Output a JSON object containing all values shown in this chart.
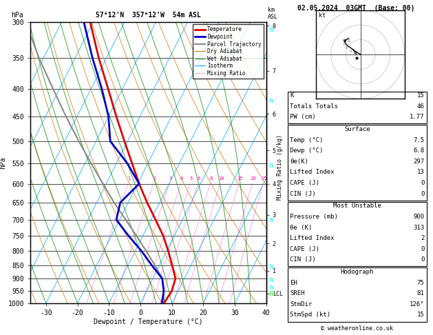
{
  "title_left": "57°12'N  357°12'W  54m ASL",
  "title_right": "02.05.2024  03GMT  (Base: 00)",
  "xlabel": "Dewpoint / Temperature (°C)",
  "ylabel_left": "hPa",
  "pressure_ticks": [
    300,
    350,
    400,
    450,
    500,
    550,
    600,
    650,
    700,
    750,
    800,
    850,
    900,
    950,
    1000
  ],
  "xlim": [
    -35,
    40
  ],
  "xticks": [
    -30,
    -20,
    -10,
    0,
    10,
    20,
    30,
    40
  ],
  "km_ticks_p": [
    305,
    370,
    445,
    520,
    600,
    685,
    775,
    870,
    960
  ],
  "km_ticks_lbl": [
    "8",
    "7",
    "6",
    "5",
    "4",
    "3",
    "2",
    "1",
    "LCL"
  ],
  "temp_profile": {
    "pressure": [
      1000,
      950,
      900,
      850,
      800,
      750,
      700,
      650,
      600,
      550,
      500,
      450,
      400,
      350,
      300
    ],
    "temp": [
      7.5,
      8.0,
      7.2,
      4.0,
      0.5,
      -3.5,
      -8.5,
      -14.0,
      -19.5,
      -25.0,
      -31.0,
      -37.5,
      -44.5,
      -52.5,
      -61.0
    ]
  },
  "dewp_profile": {
    "pressure": [
      1000,
      950,
      900,
      850,
      800,
      750,
      700,
      650,
      600,
      550,
      500,
      450,
      400,
      350,
      300
    ],
    "temp": [
      6.8,
      5.5,
      3.0,
      -2.5,
      -8.0,
      -14.5,
      -21.0,
      -22.5,
      -19.5,
      -26.5,
      -35.5,
      -40.0,
      -46.5,
      -54.5,
      -63.0
    ]
  },
  "parcel_profile": {
    "pressure": [
      1000,
      950,
      900,
      850,
      800,
      750,
      700,
      650,
      600,
      550,
      500,
      450,
      400,
      350,
      300
    ],
    "temp": [
      7.5,
      5.5,
      3.0,
      -1.5,
      -6.5,
      -12.0,
      -18.0,
      -24.5,
      -31.0,
      -38.0,
      -45.5,
      -53.5,
      -62.0,
      -71.5,
      -81.5
    ]
  },
  "bg_color": "#ffffff",
  "temp_color": "#dd0000",
  "dewp_color": "#0000cc",
  "parcel_color": "#888888",
  "dry_adiabat_color": "#cc7700",
  "wet_adiabat_color": "#008800",
  "isotherm_color": "#00aaff",
  "mixing_ratio_color": "#ff00aa",
  "legend_items": [
    "Temperature",
    "Dewpoint",
    "Parcel Trajectory",
    "Dry Adiabat",
    "Wet Adiabat",
    "Isotherm",
    "Mixing Ratio"
  ],
  "mixing_ratios": [
    1,
    2,
    3,
    4,
    5,
    6,
    8,
    10,
    15,
    20,
    25
  ],
  "dry_adiabat_thetas": [
    240,
    250,
    260,
    270,
    280,
    290,
    300,
    310,
    320,
    330,
    340,
    350,
    360,
    380,
    400,
    420
  ],
  "wet_adiabat_T0s": [
    -40,
    -30,
    -20,
    -15,
    -10,
    -5,
    0,
    5,
    10,
    15,
    20,
    25,
    30,
    35
  ],
  "iso_temps": [
    -40,
    -30,
    -20,
    -10,
    0,
    10,
    20,
    30,
    40
  ],
  "skew": 45,
  "pmin": 300,
  "pmax": 1000,
  "stats_lines_top": [
    [
      "K",
      "15"
    ],
    [
      "Totals Totals",
      "46"
    ],
    [
      "PW (cm)",
      "1.77"
    ]
  ],
  "stats_surface_header": "Surface",
  "stats_surface": [
    [
      "Temp (°C)",
      "7.5"
    ],
    [
      "Dewp (°C)",
      "6.8"
    ],
    [
      "θe(K)",
      "297"
    ],
    [
      "Lifted Index",
      "13"
    ],
    [
      "CAPE (J)",
      "0"
    ],
    [
      "CIN (J)",
      "0"
    ]
  ],
  "stats_mu_header": "Most Unstable",
  "stats_mu": [
    [
      "Pressure (mb)",
      "900"
    ],
    [
      "θe (K)",
      "313"
    ],
    [
      "Lifted Index",
      "2"
    ],
    [
      "CAPE (J)",
      "0"
    ],
    [
      "CIN (J)",
      "0"
    ]
  ],
  "stats_hodo_header": "Hodograph",
  "stats_hodo": [
    [
      "EH",
      "75"
    ],
    [
      "SREH",
      "81"
    ],
    [
      "StmDir",
      "126°"
    ],
    [
      "StmSpd (kt)",
      "15"
    ]
  ],
  "copyright": "© weatheronline.co.uk",
  "hodo_u": [
    -5,
    -12,
    -18,
    -22,
    -16
  ],
  "hodo_v": [
    3,
    8,
    12,
    18,
    22
  ],
  "hodo_storm_u": -5,
  "hodo_storm_v": -5
}
